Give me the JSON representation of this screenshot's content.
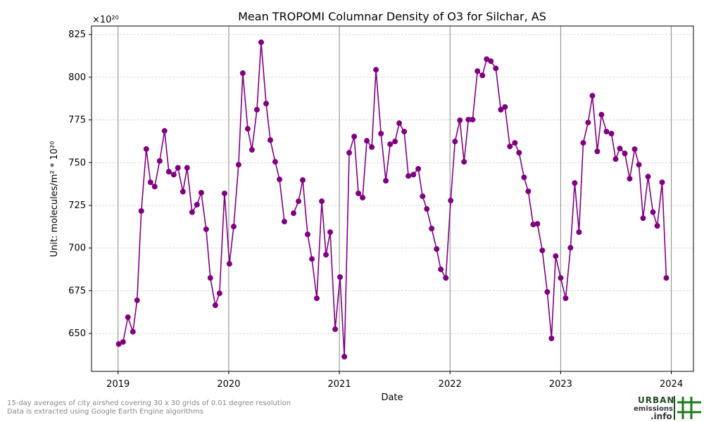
{
  "chart_data": {
    "type": "line",
    "title": "Mean TROPOMI Columnar Density of O3 for Silchar, AS",
    "x_label": "Date",
    "y_label": "Unit: molecules/m² * 10²⁰",
    "y_offset_label": "×10²⁰",
    "footnotes": [
      "15-day averages of city airshed covering 30 x 30 grids of 0.01 degree resolution",
      "Data is extracted using Google Earth Engine algorithms"
    ],
    "logo": [
      "URBAN",
      "emissions",
      ".info"
    ],
    "xlim": [
      2018.76,
      2024.2
    ],
    "xticks": [
      2019,
      2020,
      2021,
      2022,
      2023,
      2024
    ],
    "ylim": [
      627.8,
      830
    ],
    "yticks": [
      650,
      675,
      700,
      725,
      750,
      775,
      800,
      825
    ],
    "grid": true,
    "series": [
      {
        "name": "O3",
        "color": "#800080",
        "x": [
          2019.006,
          2019.045,
          2019.089,
          2019.134,
          2019.172,
          2019.21,
          2019.255,
          2019.293,
          2019.331,
          2019.376,
          2019.42,
          2019.459,
          2019.503,
          2019.541,
          2019.586,
          2019.624,
          2019.669,
          2019.713,
          2019.752,
          2019.796,
          2019.834,
          2019.879,
          2019.917,
          2019.962,
          2020.006,
          2020.045,
          2020.089,
          2020.127,
          2020.172,
          2020.21,
          2020.255,
          2020.293,
          2020.338,
          2020.376,
          2020.42,
          2020.459,
          2020.503,
          2020.541,
          2020.586,
          2020.631,
          2020.669,
          2020.713,
          2020.752,
          2020.796,
          2020.841,
          2020.879,
          2020.917,
          2020.962,
          2021.006,
          2021.045,
          2021.089,
          2021.134,
          2021.172,
          2021.21,
          2021.248,
          2021.293,
          2021.331,
          2021.376,
          2021.42,
          2021.459,
          2021.503,
          2021.541,
          2021.586,
          2021.624,
          2021.669,
          2021.713,
          2021.752,
          2021.79,
          2021.834,
          2021.879,
          2021.917,
          2021.962,
          2022.006,
          2022.045,
          2022.089,
          2022.127,
          2022.166,
          2022.204,
          2022.248,
          2022.293,
          2022.331,
          2022.369,
          2022.414,
          2022.459,
          2022.497,
          2022.541,
          2022.586,
          2022.624,
          2022.669,
          2022.707,
          2022.752,
          2022.79,
          2022.834,
          2022.879,
          2022.917,
          2022.955,
          2023.0,
          2023.045,
          2023.089,
          2023.127,
          2023.166,
          2023.204,
          2023.248,
          2023.287,
          2023.331,
          2023.369,
          2023.414,
          2023.459,
          2023.497,
          2023.535,
          2023.58,
          2023.624,
          2023.669,
          2023.707,
          2023.745,
          2023.79,
          2023.834,
          2023.873,
          2023.917,
          2023.955
        ],
        "values": [
          643.8,
          645,
          659.5,
          651,
          669.4,
          721.7,
          758,
          738.5,
          736,
          751,
          768.6,
          744.7,
          743,
          747,
          733,
          747,
          721,
          725.4,
          732.4,
          711,
          682.5,
          666.5,
          673.5,
          732,
          690.8,
          712.6,
          748.8,
          802.4,
          769.8,
          757.5,
          781,
          820.5,
          784.6,
          763.2,
          750.5,
          740.2,
          715.5,
          null,
          720.4,
          727.4,
          739.8,
          708,
          693.6,
          670.6,
          727.4,
          696.1,
          709.3,
          652.5,
          683,
          636.4,
          755.8,
          765.3,
          732,
          729.5,
          762.8,
          759.1,
          804.4,
          767,
          739.4,
          760.8,
          762.4,
          773.1,
          768.2,
          742.2,
          743,
          746.4,
          730.3,
          722.9,
          711.4,
          699.4,
          687.5,
          682.5,
          727.8,
          762.4,
          774.8,
          750.5,
          775.2,
          775.2,
          803.6,
          801.1,
          810.6,
          809.4,
          805.2,
          781,
          782.6,
          759.5,
          761.6,
          755.8,
          741.4,
          733.2,
          713.8,
          714.2,
          698.6,
          674.3,
          647.1,
          695.3,
          682.5,
          670.6,
          700.2,
          738.1,
          709.3,
          761.6,
          773.5,
          789.2,
          756.6,
          778.1,
          768.2,
          767,
          752.1,
          758.3,
          755.4,
          740.6,
          757.9,
          748.8,
          717.5,
          741.8,
          721,
          713,
          738.5,
          682.5
        ]
      }
    ]
  }
}
